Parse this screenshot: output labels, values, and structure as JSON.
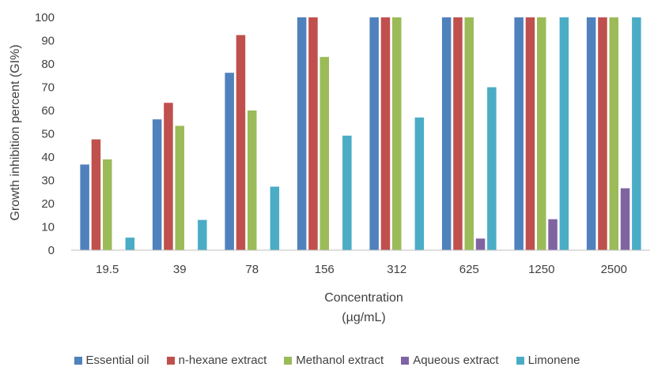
{
  "chart_data": {
    "type": "bar",
    "categories": [
      "19.5",
      "39",
      "78",
      "156",
      "312",
      "625",
      "1250",
      "2500"
    ],
    "series": [
      {
        "name": "Essential oil",
        "color": "#4F81BD",
        "values": [
          36.8,
          56.2,
          76.2,
          100,
          100,
          100,
          100,
          100
        ]
      },
      {
        "name": "n-hexane extract",
        "color": "#C0504D",
        "values": [
          47.6,
          63.3,
          92.4,
          100,
          100,
          100,
          100,
          100
        ]
      },
      {
        "name": "Methanol extract",
        "color": "#9BBB59",
        "values": [
          39.0,
          53.4,
          60.0,
          83.0,
          100,
          100,
          100,
          100
        ]
      },
      {
        "name": "Aqueous extract",
        "color": "#8064A2",
        "values": [
          0,
          0,
          0,
          0,
          0,
          5.0,
          13.3,
          26.6
        ]
      },
      {
        "name": "Limonene",
        "color": "#4BACC6",
        "values": [
          5.4,
          13.0,
          27.3,
          49.2,
          57.0,
          70.0,
          100,
          100
        ]
      }
    ],
    "ylabel": "Growth inhibition percent (GI%)",
    "xlabel_line1": "Concentration",
    "xlabel_line2": "(µg/mL)",
    "ylim": [
      0,
      100
    ],
    "yticks": [
      0,
      10,
      20,
      30,
      40,
      50,
      60,
      70,
      80,
      90,
      100
    ],
    "grid": false,
    "legend_position": "bottom"
  }
}
